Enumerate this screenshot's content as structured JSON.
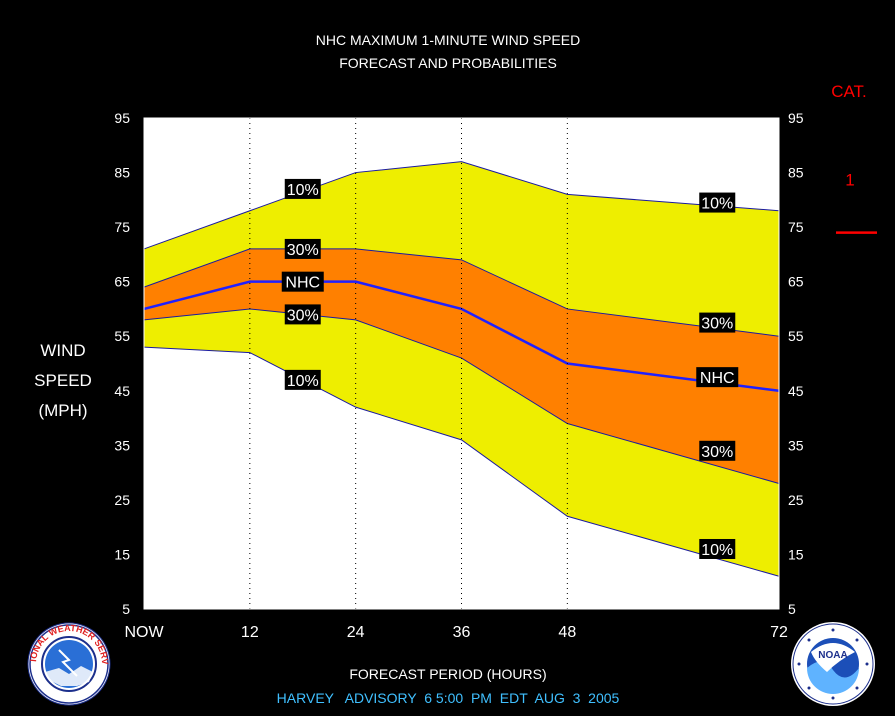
{
  "title": {
    "line1": "NHC MAXIMUM 1-MINUTE WIND SPEED",
    "line2": "FORECAST AND PROBABILITIES"
  },
  "ylabel_lines": [
    "WIND",
    "SPEED",
    "(MPH)"
  ],
  "xlabel": "FORECAST PERIOD (HOURS)",
  "footer": "HARVEY   ADVISORY  6 5:00  PM  EDT  AUG  3  2005",
  "category": {
    "heading": "CAT.",
    "entries": [
      {
        "label": "1",
        "wind_mph": 74,
        "color": "#ff0000"
      }
    ]
  },
  "colors": {
    "band_10": "#eeee00",
    "band_30": "#ff8000",
    "nhc_line": "#2020ff",
    "band_edge": "#1a1aa0",
    "category_text": "#ff0000",
    "footer_text": "#40c0ff",
    "background": "#000000",
    "plot_background": "#ffffff"
  },
  "logos": {
    "left_icon": "nws-logo-icon",
    "left_text": "NATIONAL WEATHER SERVICE",
    "right_icon": "noaa-logo-icon",
    "right_text": "NOAA"
  },
  "chart_data": {
    "type": "area",
    "x_ticks": [
      {
        "value": 0,
        "label": "NOW"
      },
      {
        "value": 12,
        "label": "12"
      },
      {
        "value": 24,
        "label": "24"
      },
      {
        "value": 36,
        "label": "36"
      },
      {
        "value": 48,
        "label": "48"
      },
      {
        "value": 72,
        "label": "72"
      }
    ],
    "y_ticks": [
      5,
      15,
      25,
      35,
      45,
      55,
      65,
      75,
      85,
      95
    ],
    "xlim": [
      0,
      72
    ],
    "ylim": [
      5,
      95
    ],
    "grid": "vertical dotted at 12, 24, 36, 48",
    "x": [
      0,
      12,
      24,
      36,
      48,
      72
    ],
    "series": [
      {
        "name": "10%",
        "position": "upper",
        "values": [
          71,
          78,
          85,
          87,
          81,
          78
        ]
      },
      {
        "name": "30%",
        "position": "upper",
        "values": [
          64,
          71,
          71,
          69,
          60,
          55
        ]
      },
      {
        "name": "NHC",
        "values": [
          60,
          65,
          65,
          60,
          50,
          45
        ]
      },
      {
        "name": "30%",
        "position": "lower",
        "values": [
          58,
          60,
          58,
          51,
          39,
          28
        ]
      },
      {
        "name": "10%",
        "position": "lower",
        "values": [
          53,
          52,
          42,
          36,
          22,
          11
        ]
      }
    ],
    "annotations": [
      {
        "text": "10%",
        "x": 18,
        "y": 82
      },
      {
        "text": "30%",
        "x": 18,
        "y": 71
      },
      {
        "text": "NHC",
        "x": 18,
        "y": 65
      },
      {
        "text": "30%",
        "x": 18,
        "y": 59
      },
      {
        "text": "10%",
        "x": 18,
        "y": 47
      },
      {
        "text": "10%",
        "x": 65,
        "y": 79.5
      },
      {
        "text": "30%",
        "x": 65,
        "y": 57.5
      },
      {
        "text": "NHC",
        "x": 65,
        "y": 47.5
      },
      {
        "text": "30%",
        "x": 65,
        "y": 34
      },
      {
        "text": "10%",
        "x": 65,
        "y": 16
      }
    ]
  }
}
